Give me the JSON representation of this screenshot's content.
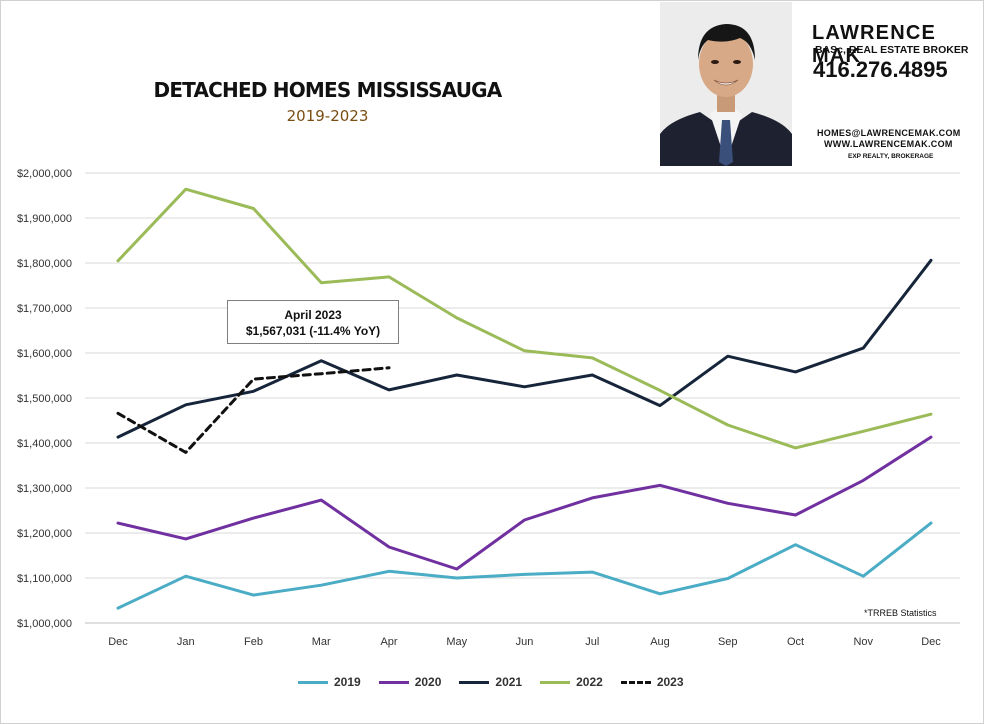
{
  "header": {
    "title": "DETACHED HOMES MISSISSAUGA",
    "subtitle": "2019-2023"
  },
  "agent": {
    "name": "LAWRENCE MAK",
    "role": "BASc, REAL ESTATE BROKER",
    "phone": "416.276.4895",
    "email": "HOMES@LAWRENCEMAK.COM",
    "website": "WWW.LAWRENCEMAK.COM",
    "brokerage": "EXP REALTY, BROKERAGE"
  },
  "callout": {
    "line1": "April 2023",
    "line2": "$1,567,031  (-11.4%  YoY)"
  },
  "source_note": "*TRREB Statistics",
  "chart_data": {
    "type": "line",
    "title": "DETACHED HOMES MISSISSAUGA",
    "subtitle": "2019-2023",
    "xlabel": "",
    "ylabel": "",
    "categories": [
      "Dec",
      "Jan",
      "Feb",
      "Mar",
      "Apr",
      "May",
      "Jun",
      "Jul",
      "Aug",
      "Sep",
      "Oct",
      "Nov",
      "Dec"
    ],
    "ylim": [
      1000000,
      2000000
    ],
    "yticks": [
      1000000,
      1100000,
      1200000,
      1300000,
      1400000,
      1500000,
      1600000,
      1700000,
      1800000,
      1900000,
      2000000
    ],
    "ytick_labels": [
      "$1,000,000",
      "$1,100,000",
      "$1,200,000",
      "$1,300,000",
      "$1,400,000",
      "$1,500,000",
      "$1,600,000",
      "$1,700,000",
      "$1,800,000",
      "$1,900,000",
      "$2,000,000"
    ],
    "grid": true,
    "legend": "bottom",
    "series": [
      {
        "name": "2019",
        "color": "#4bacc6",
        "dash": false,
        "values": [
          1033000,
          1104000,
          1062000,
          1084000,
          1115000,
          1100000,
          1108000,
          1113000,
          1065000,
          1099000,
          1174000,
          1104000,
          1222000
        ]
      },
      {
        "name": "2020",
        "color": "#7030a0",
        "dash": false,
        "values": [
          1222000,
          1187000,
          1233000,
          1273000,
          1169000,
          1120000,
          1229000,
          1278000,
          1306000,
          1266000,
          1240000,
          1317000,
          1413000
        ]
      },
      {
        "name": "2021",
        "color": "#16253a",
        "dash": false,
        "values": [
          1413000,
          1485000,
          1515000,
          1583000,
          1518000,
          1551000,
          1525000,
          1551000,
          1483000,
          1593000,
          1558000,
          1611000,
          1806000
        ]
      },
      {
        "name": "2022",
        "color": "#9bbb59",
        "dash": false,
        "values": [
          1805000,
          1964000,
          1921000,
          1756000,
          1769000,
          1678000,
          1605000,
          1589000,
          1517000,
          1440000,
          1389000,
          1426000,
          1464000
        ]
      },
      {
        "name": "2023",
        "color": "#111111",
        "dash": true,
        "values": [
          1466000,
          1379000,
          1542000,
          1554000,
          1567031,
          null,
          null,
          null,
          null,
          null,
          null,
          null,
          null
        ]
      }
    ],
    "annotations": [
      {
        "text": "April 2023 $1,567,031 (-11.4% YoY)",
        "x": "Apr",
        "series": "2023"
      }
    ]
  }
}
